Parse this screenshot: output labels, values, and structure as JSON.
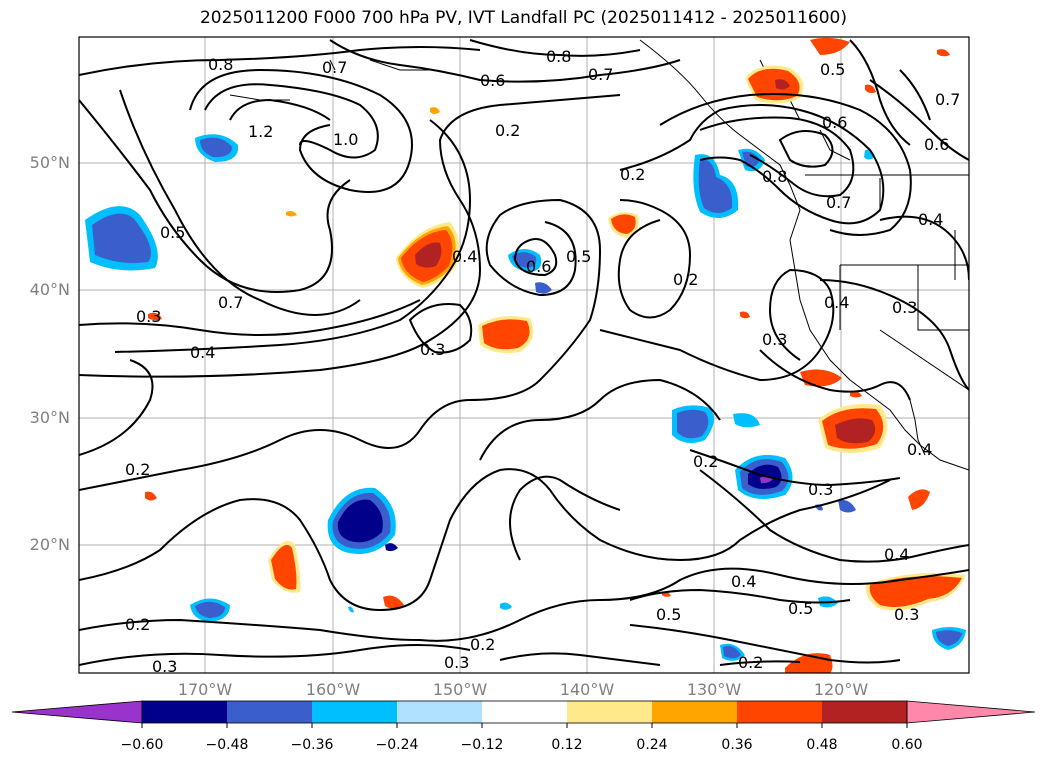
{
  "title": "2025011200 F000 700 hPa PV, IVT Landfall PC (2025011412 - 2025011600)",
  "map": {
    "lat_labels": [
      "50°N",
      "40°N",
      "30°N",
      "20°N"
    ],
    "lon_labels": [
      "170°W",
      "160°W",
      "150°W",
      "140°W",
      "130°W",
      "120°W"
    ],
    "contour_labels": [
      "0.8",
      "0.7",
      "1.2",
      "1.0",
      "0.5",
      "0.3",
      "0.7",
      "0.4",
      "0.8",
      "0.7",
      "0.6",
      "0.2",
      "0.2",
      "0.4",
      "0.6",
      "0.5",
      "0.2",
      "0.3",
      "0.5",
      "0.6",
      "0.7",
      "0.6",
      "0.8",
      "0.7",
      "0.4",
      "0.4",
      "0.3",
      "0.3",
      "0.4",
      "0.2",
      "0.2",
      "0.3",
      "0.4",
      "0.4",
      "0.5",
      "0.5",
      "0.2",
      "0.2",
      "0.3",
      "0.2",
      "0.3",
      "0.3"
    ]
  },
  "colorbar": {
    "ticks": [
      "−0.60",
      "−0.48",
      "−0.36",
      "−0.24",
      "−0.12",
      "0.12",
      "0.24",
      "0.36",
      "0.48",
      "0.60"
    ],
    "colors": [
      "#9933cc",
      "#00008b",
      "#3a5fcd",
      "#00bfff",
      "#b0e2ff",
      "#ffffff",
      "#ffe98a",
      "#ffa500",
      "#ff4500",
      "#b22222",
      "#ff88aa",
      "#ff88aa"
    ]
  }
}
